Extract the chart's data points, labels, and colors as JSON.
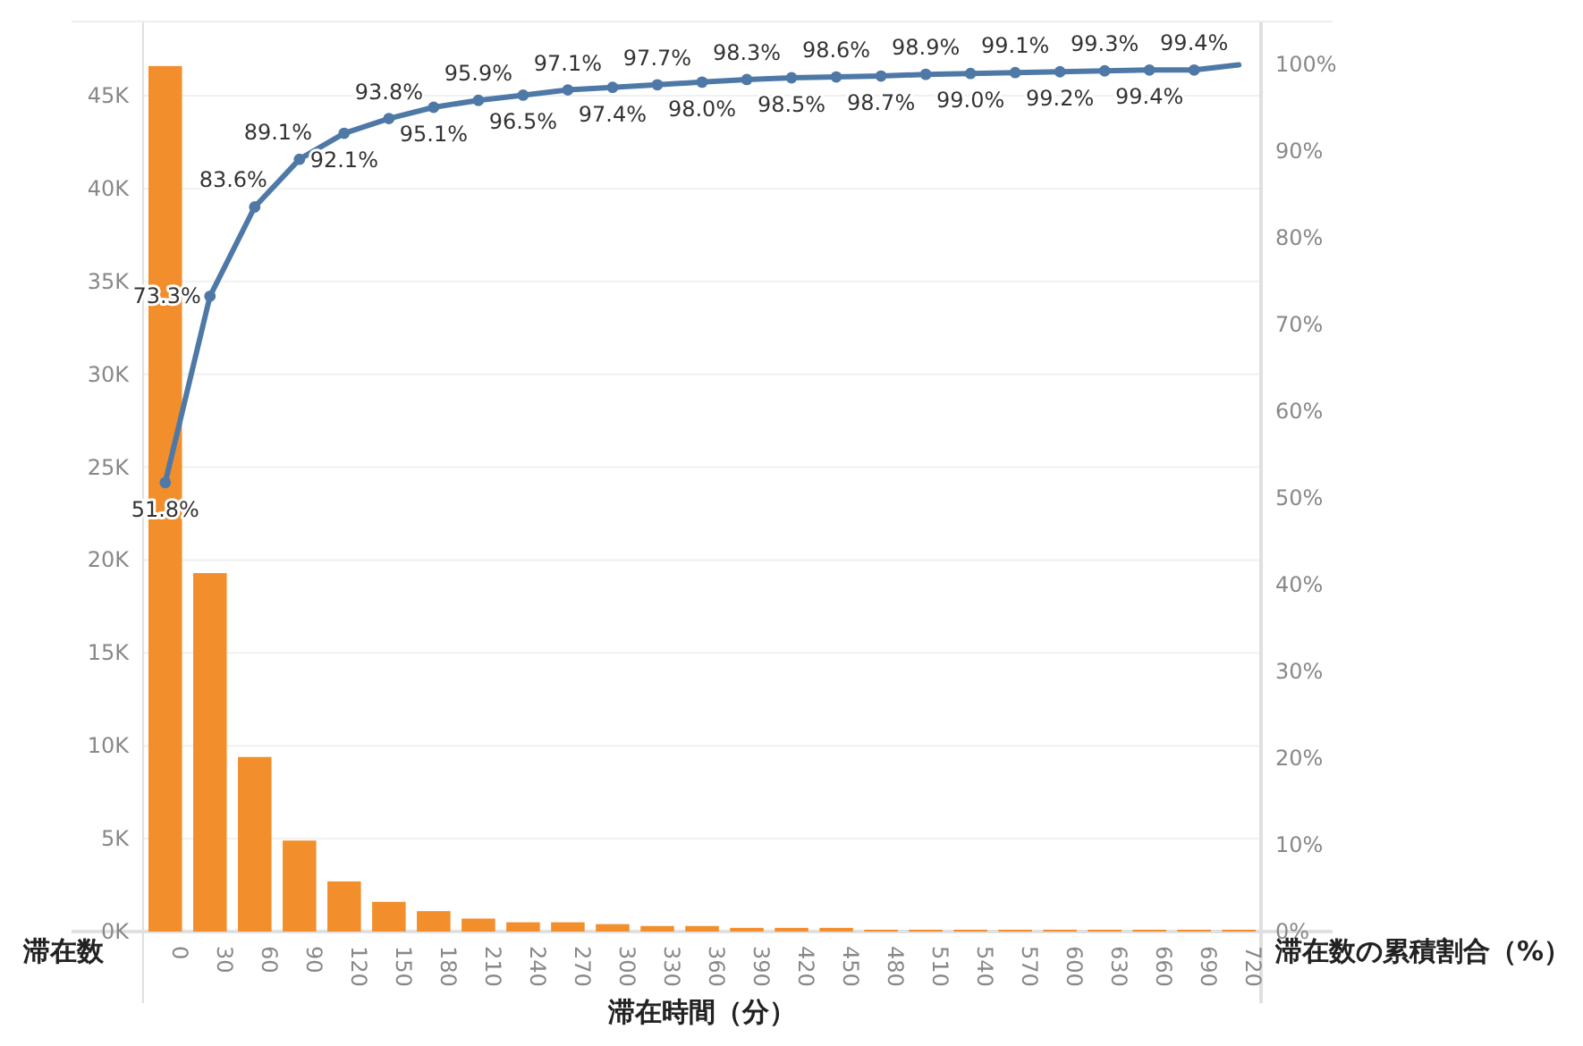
{
  "chart_data": {
    "type": "bar",
    "xlabel": "滞在時間（分）",
    "ylabel": "滞在数",
    "y2label": "滞在数の累積割合（%）",
    "categories": [
      "0",
      "30",
      "60",
      "90",
      "120",
      "150",
      "180",
      "210",
      "240",
      "270",
      "300",
      "330",
      "360",
      "390",
      "420",
      "450",
      "480",
      "510",
      "540",
      "570",
      "600",
      "630",
      "660",
      "690",
      "720"
    ],
    "series": [
      {
        "color": "#f28e2b",
        "values": [
          46600,
          19300,
          9400,
          4900,
          2700,
          1600,
          1100,
          700,
          500,
          500,
          400,
          300,
          300,
          200,
          200,
          200,
          100,
          100,
          100,
          100,
          100,
          100,
          100,
          100,
          100
        ]
      },
      {
        "type": "line",
        "axis": "y2",
        "color": "#4e79a7",
        "values": [
          51.8,
          73.3,
          83.6,
          89.1,
          92.1,
          93.8,
          95.1,
          95.9,
          96.5,
          97.1,
          97.4,
          97.7,
          98.0,
          98.3,
          98.5,
          98.6,
          98.7,
          98.9,
          99.0,
          99.1,
          99.2,
          99.3,
          99.4,
          99.4,
          100
        ],
        "value_labels": [
          "51.8%",
          "73.3%",
          "83.6%",
          "89.1%",
          "92.1%",
          "93.8%",
          "95.1%",
          "95.9%",
          "96.5%",
          "97.1%",
          "97.4%",
          "97.7%",
          "98.0%",
          "98.3%",
          "98.5%",
          "98.6%",
          "98.7%",
          "98.9%",
          "99.0%",
          "99.1%",
          "99.2%",
          "99.3%",
          "99.4%",
          "99.4%",
          null
        ]
      }
    ],
    "ylim": [
      0,
      49000
    ],
    "yticks": [
      {
        "value": 0,
        "label": "0K"
      },
      {
        "value": 5000,
        "label": "5K"
      },
      {
        "value": 10000,
        "label": "10K"
      },
      {
        "value": 15000,
        "label": "15K"
      },
      {
        "value": 20000,
        "label": "20K"
      },
      {
        "value": 25000,
        "label": "25K"
      },
      {
        "value": 30000,
        "label": "30K"
      },
      {
        "value": 35000,
        "label": "35K"
      },
      {
        "value": 40000,
        "label": "40K"
      },
      {
        "value": 45000,
        "label": "45K"
      }
    ],
    "y2lim": [
      0,
      105
    ],
    "y2ticks": [
      {
        "value": 0,
        "label": "0%"
      },
      {
        "value": 10,
        "label": "10%"
      },
      {
        "value": 20,
        "label": "20%"
      },
      {
        "value": 30,
        "label": "30%"
      },
      {
        "value": 40,
        "label": "40%"
      },
      {
        "value": 50,
        "label": "50%"
      },
      {
        "value": 60,
        "label": "60%"
      },
      {
        "value": 70,
        "label": "70%"
      },
      {
        "value": 80,
        "label": "80%"
      },
      {
        "value": 90,
        "label": "90%"
      },
      {
        "value": 100,
        "label": "100%"
      }
    ],
    "grid": "y",
    "marker": "circle",
    "line_style": "solid"
  }
}
